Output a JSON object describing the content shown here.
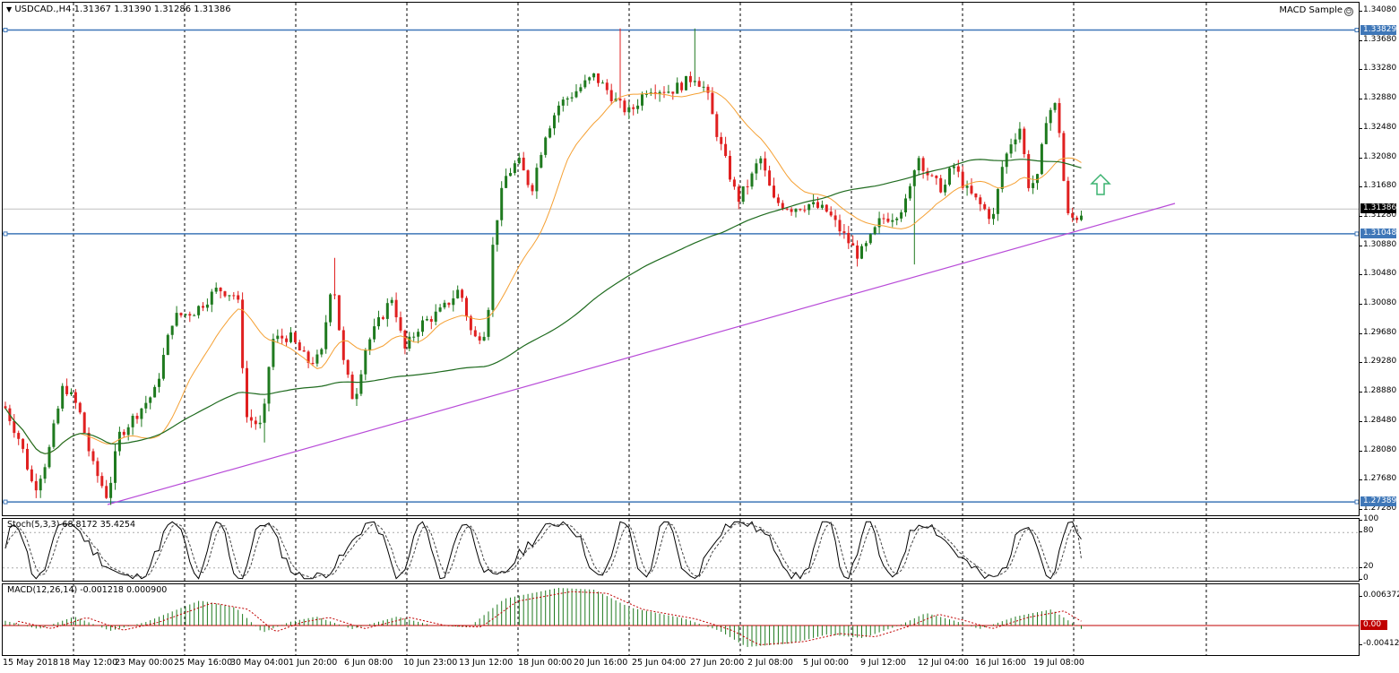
{
  "main": {
    "symbol": "USDCAD.,H4",
    "ohlc": "1.31367 1.31390 1.31286 1.31386",
    "expert_label": "MACD Sample",
    "expert_icon": "smiley-icon",
    "menu_icon": "triangle-down-icon",
    "price_ticks": [
      "1.34080",
      "1.33680",
      "1.33280",
      "1.32880",
      "1.32480",
      "1.32080",
      "1.31680",
      "1.31280",
      "1.30880",
      "1.30480",
      "1.30080",
      "1.29680",
      "1.29280",
      "1.28880",
      "1.28480",
      "1.28080",
      "1.27680",
      "1.27280"
    ],
    "current_price": "1.31386",
    "hline_labels": [
      "1.33829",
      "1.31048",
      "1.27389"
    ],
    "colors": {
      "bull": "#1f7a1f",
      "bear": "#e02020",
      "ma_fast": "#f5a033",
      "ma_slow": "#1f6b1f",
      "trendline": "#b84bd8",
      "hline": "#3f77b8",
      "arrow": "#3cb371"
    }
  },
  "stochastic": {
    "label": "Stoch(5,3,3) 68.8172 35.4254",
    "ticks": [
      "100",
      "80",
      "20",
      "0"
    ]
  },
  "macd": {
    "label": "MACD(12,26,14) -0.001218 0.000900",
    "ticks": [
      "0.006372",
      "0.00",
      "-0.004125"
    ],
    "zero_tag": "0.00"
  },
  "time_axis": [
    "15 May 2018",
    "18 May 12:00",
    "23 May 00:00",
    "25 May 16:00",
    "30 May 04:00",
    "1 Jun 20:00",
    "6 Jun 08:00",
    "10 Jun 23:00",
    "13 Jun 12:00",
    "18 Jun 00:00",
    "20 Jun 16:00",
    "25 Jun 04:00",
    "27 Jun 20:00",
    "2 Jul 08:00",
    "5 Jul 00:00",
    "9 Jul 12:00",
    "12 Jul 04:00",
    "16 Jul 16:00",
    "19 Jul 08:00"
  ]
}
